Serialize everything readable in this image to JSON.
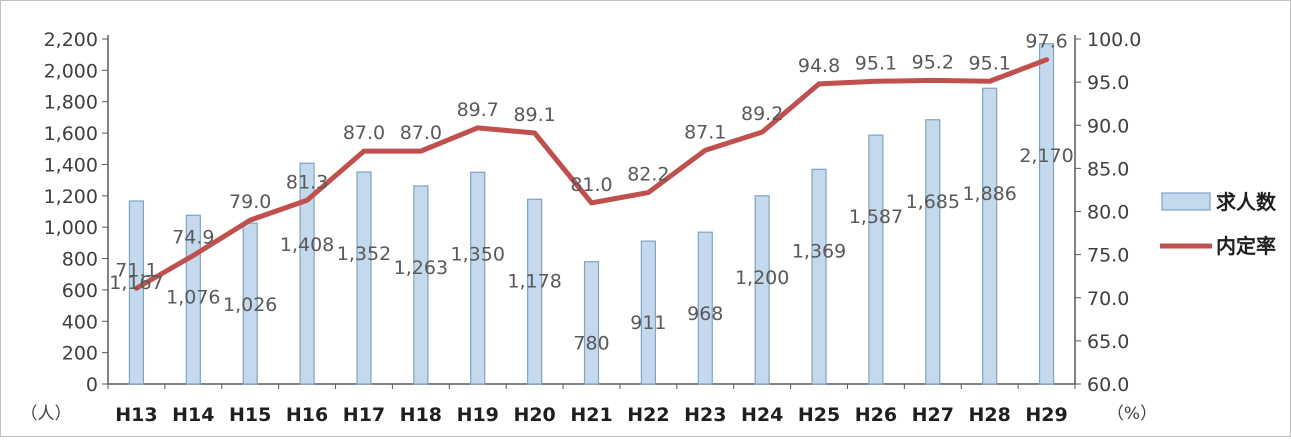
{
  "chart_data": {
    "type": "bar+line",
    "categories": [
      "H13",
      "H14",
      "H15",
      "H16",
      "H17",
      "H18",
      "H19",
      "H20",
      "H21",
      "H22",
      "H23",
      "H24",
      "H25",
      "H26",
      "H27",
      "H28",
      "H29"
    ],
    "left_axis": {
      "unit_label": "（人）",
      "ylim": [
        0,
        2200
      ],
      "ticks": [
        "0",
        "200",
        "400",
        "600",
        "800",
        "1,000",
        "1,200",
        "1,400",
        "1,600",
        "1,800",
        "2,000",
        "2,200"
      ]
    },
    "right_axis": {
      "unit_label": "（%）",
      "ylim": [
        60,
        100
      ],
      "ticks": [
        "60.0",
        "65.0",
        "70.0",
        "75.0",
        "80.0",
        "85.0",
        "90.0",
        "95.0",
        "100.0"
      ]
    },
    "series": [
      {
        "name": "求人数",
        "type": "bar",
        "axis": "left",
        "values": [
          1167,
          1076,
          1026,
          1408,
          1352,
          1263,
          1350,
          1178,
          780,
          911,
          968,
          1200,
          1369,
          1587,
          1685,
          1886,
          2170
        ],
        "labels": [
          "1,167",
          "1,076",
          "1,026",
          "1,408",
          "1,352",
          "1,263",
          "1,350",
          "1,178",
          "780",
          "911",
          "968",
          "1,200",
          "1,369",
          "1,587",
          "1,685",
          "1,886",
          "2,170"
        ],
        "color": "#c5d9ec",
        "border_color": "#7fa3c6"
      },
      {
        "name": "内定率",
        "type": "line",
        "axis": "right",
        "values": [
          71.1,
          74.9,
          79.0,
          81.3,
          87.0,
          87.0,
          89.7,
          89.1,
          81.0,
          82.2,
          87.1,
          89.2,
          94.8,
          95.1,
          95.2,
          95.1,
          97.6
        ],
        "labels": [
          "71.1",
          "74.9",
          "79.0",
          "81.3",
          "87.0",
          "87.0",
          "89.7",
          "89.1",
          "81.0",
          "82.2",
          "87.1",
          "89.2",
          "94.8",
          "95.1",
          "95.2",
          "95.1",
          "97.6"
        ],
        "color": "#c0504d"
      }
    ],
    "legend": {
      "placement": "right"
    },
    "grid": false
  }
}
